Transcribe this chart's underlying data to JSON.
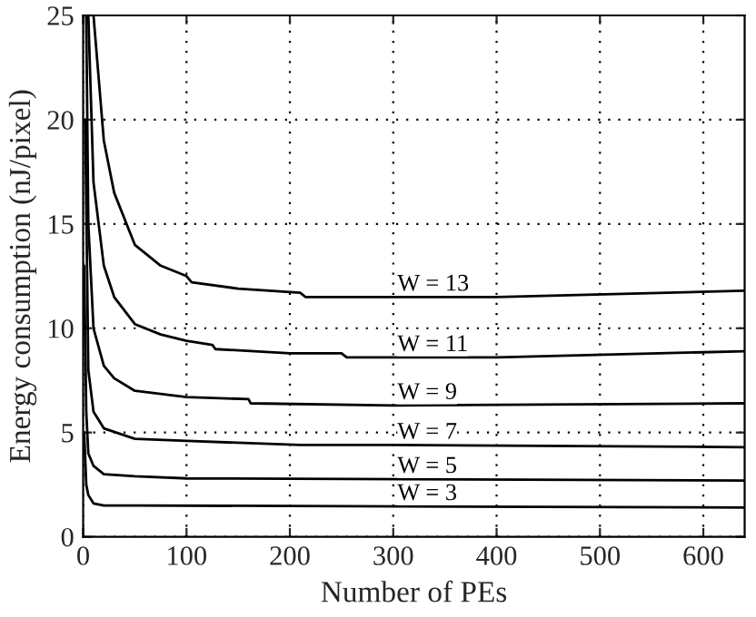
{
  "chart_data": {
    "type": "line",
    "xlabel": "Number of PEs",
    "ylabel": "Energy consumption (nJ/pixel)",
    "xlim": [
      0,
      640
    ],
    "ylim": [
      0,
      25
    ],
    "xticks": [
      0,
      100,
      200,
      300,
      400,
      500,
      600
    ],
    "yticks": [
      0,
      5,
      10,
      15,
      20,
      25
    ],
    "grid": true,
    "line_style": "solid",
    "series": [
      {
        "name": "W = 13",
        "color": "#000000",
        "x": [
          10,
          20,
          30,
          50,
          75,
          100,
          105,
          150,
          210,
          215,
          300,
          400,
          640
        ],
        "values": [
          25,
          19,
          16.5,
          14,
          13,
          12.5,
          12.2,
          11.9,
          11.7,
          11.5,
          11.5,
          11.5,
          11.8
        ]
      },
      {
        "name": "W = 11",
        "color": "#000000",
        "x": [
          5,
          10,
          20,
          30,
          50,
          75,
          100,
          125,
          128,
          200,
          250,
          255,
          400,
          640
        ],
        "values": [
          25,
          17,
          13,
          11.5,
          10.2,
          9.7,
          9.4,
          9.2,
          9.0,
          8.8,
          8.8,
          8.6,
          8.6,
          8.9
        ]
      },
      {
        "name": "W = 9",
        "color": "#000000",
        "x": [
          3,
          5,
          10,
          20,
          30,
          50,
          100,
          160,
          162,
          300,
          640
        ],
        "values": [
          25,
          15,
          10,
          8.2,
          7.6,
          7.0,
          6.7,
          6.6,
          6.4,
          6.3,
          6.4
        ]
      },
      {
        "name": "W = 7",
        "color": "#000000",
        "x": [
          2,
          5,
          10,
          20,
          50,
          100,
          210,
          300,
          640
        ],
        "values": [
          20,
          8,
          6,
          5.2,
          4.7,
          4.6,
          4.4,
          4.4,
          4.3
        ]
      },
      {
        "name": "W = 5",
        "color": "#000000",
        "x": [
          1,
          3,
          5,
          10,
          20,
          50,
          100,
          640
        ],
        "values": [
          13,
          6,
          4,
          3.4,
          3.0,
          2.9,
          2.8,
          2.7
        ]
      },
      {
        "name": "W = 3",
        "color": "#000000",
        "x": [
          1,
          3,
          5,
          10,
          20,
          50,
          640
        ],
        "values": [
          5,
          2.5,
          2,
          1.6,
          1.5,
          1.5,
          1.4
        ]
      }
    ]
  }
}
